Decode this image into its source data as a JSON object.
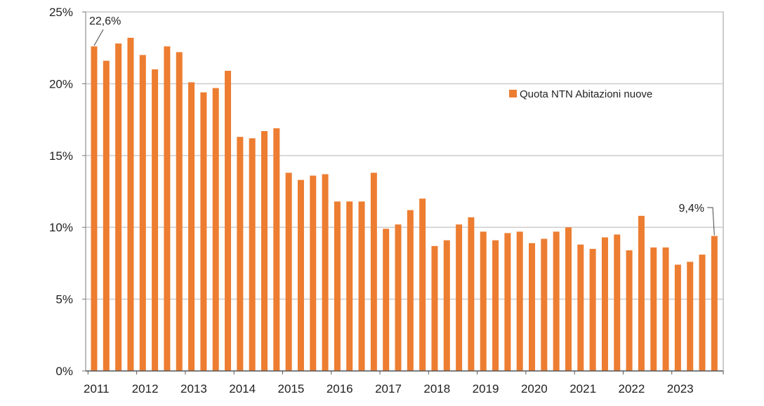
{
  "chart_data": {
    "type": "bar",
    "x_tick_labels": [
      "2011",
      "2012",
      "2013",
      "2014",
      "2015",
      "2016",
      "2017",
      "2018",
      "2019",
      "2020",
      "2021",
      "2022",
      "2023"
    ],
    "y_tick_labels": [
      "0%",
      "5%",
      "10%",
      "15%",
      "20%",
      "25%"
    ],
    "ylim": [
      0,
      25
    ],
    "y_unit": "%",
    "grid": true,
    "legend_position": "top-right",
    "series": [
      {
        "name": "Quota NTN Abitazioni nuove",
        "color": "#ED7D31",
        "values": [
          22.6,
          21.6,
          22.8,
          23.2,
          22.0,
          21.0,
          22.6,
          22.2,
          20.1,
          19.4,
          19.7,
          20.9,
          16.3,
          16.2,
          16.7,
          16.9,
          13.8,
          13.3,
          13.6,
          13.7,
          11.8,
          11.8,
          11.8,
          13.8,
          9.9,
          10.2,
          11.2,
          12.0,
          8.7,
          9.1,
          10.2,
          10.7,
          9.7,
          9.1,
          9.6,
          9.7,
          8.9,
          9.2,
          9.7,
          10.0,
          8.8,
          8.5,
          9.3,
          9.5,
          8.4,
          10.8,
          8.6,
          8.6,
          7.4,
          7.6,
          8.1,
          9.4
        ]
      }
    ],
    "annotations": [
      {
        "text": "22,6%",
        "bar_index": 0
      },
      {
        "text": "9,4%",
        "bar_index": 51
      }
    ]
  }
}
